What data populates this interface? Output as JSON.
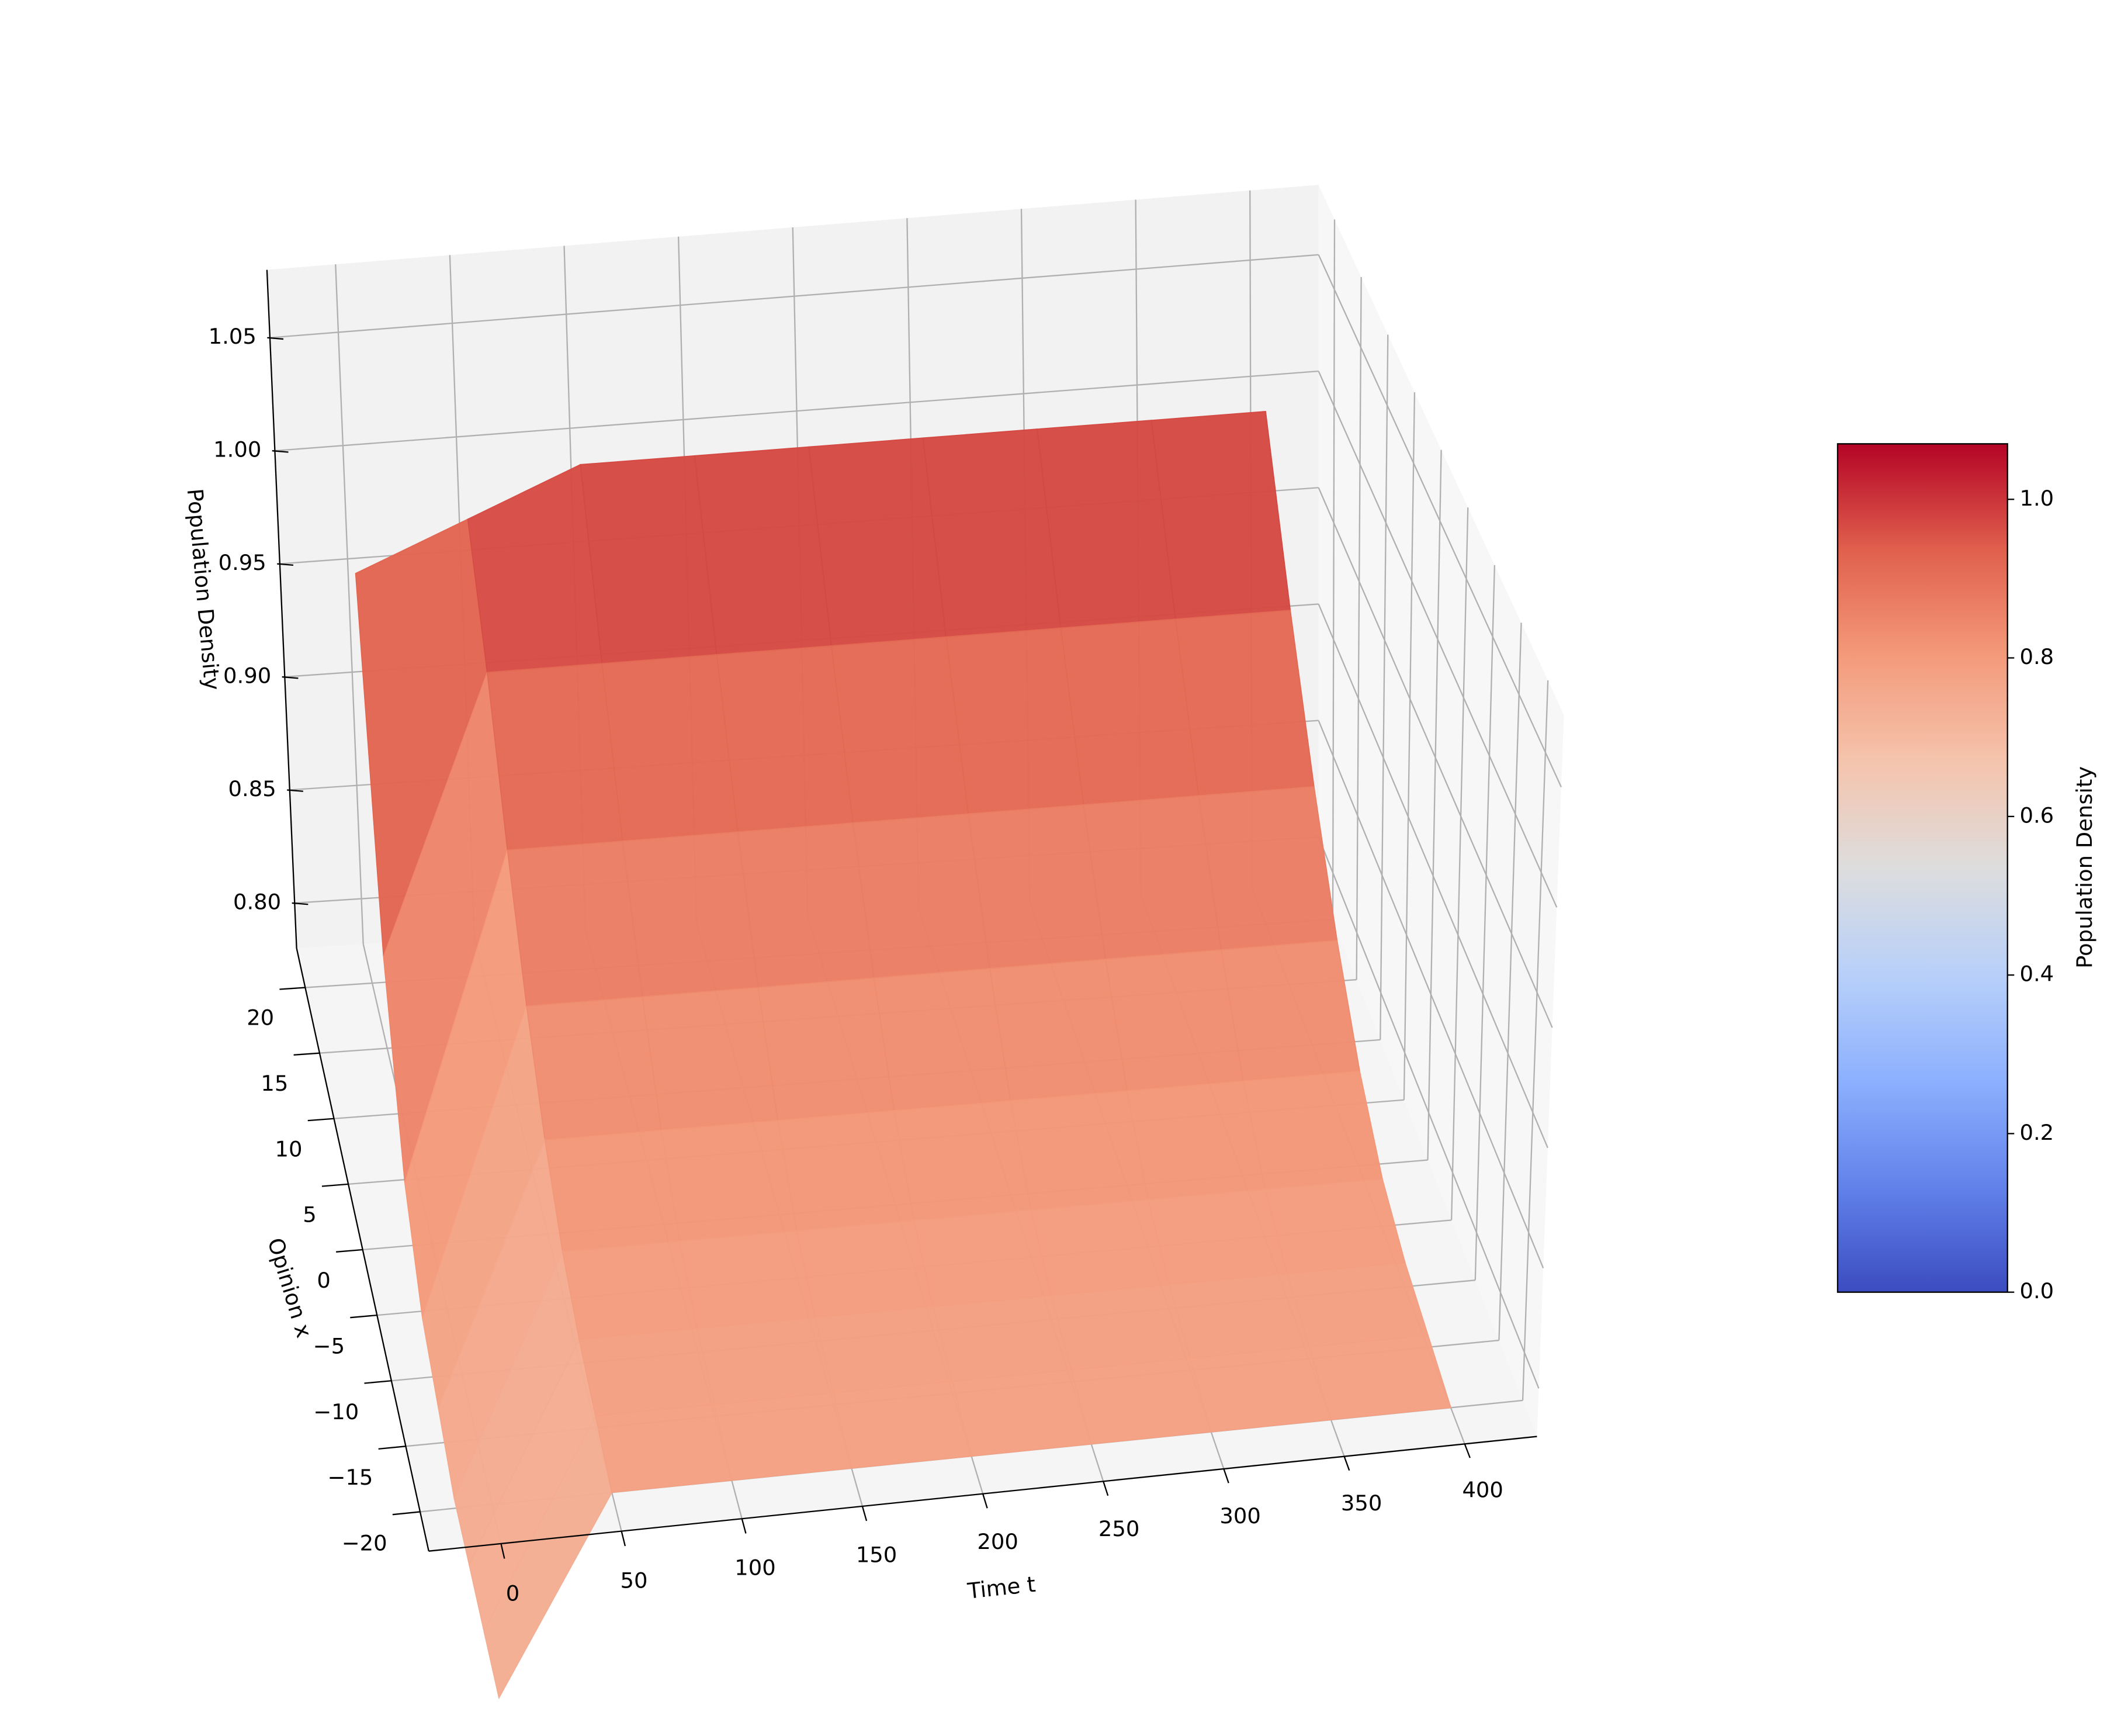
{
  "chart_data": {
    "type": "surface",
    "x_label": "Time t",
    "y_label": "Opinion x",
    "z_label": "Population Density",
    "colormap": "coolwarm",
    "grid": true,
    "x": [
      0,
      50,
      100,
      150,
      200,
      250,
      300,
      350,
      400
    ],
    "y": [
      -20,
      -15,
      -10,
      -5,
      0,
      5,
      10,
      15,
      20
    ],
    "z": [
      [
        0.7,
        0.78,
        0.78,
        0.78,
        0.78,
        0.78,
        0.78,
        0.78,
        0.78
      ],
      [
        0.7,
        0.785,
        0.785,
        0.785,
        0.785,
        0.785,
        0.785,
        0.785,
        0.785
      ],
      [
        0.7,
        0.79,
        0.79,
        0.79,
        0.79,
        0.79,
        0.79,
        0.79,
        0.79
      ],
      [
        0.7,
        0.8,
        0.8,
        0.8,
        0.8,
        0.8,
        0.8,
        0.8,
        0.8
      ],
      [
        0.71,
        0.82,
        0.82,
        0.82,
        0.82,
        0.82,
        0.82,
        0.82,
        0.82
      ],
      [
        0.72,
        0.85,
        0.85,
        0.85,
        0.85,
        0.85,
        0.85,
        0.85,
        0.85
      ],
      [
        0.75,
        0.89,
        0.89,
        0.89,
        0.89,
        0.89,
        0.89,
        0.89,
        0.89
      ],
      [
        0.82,
        0.94,
        0.94,
        0.94,
        0.94,
        0.94,
        0.94,
        0.94,
        0.94
      ],
      [
        0.96,
        0.98,
        1.0,
        1.0,
        1.0,
        1.0,
        1.0,
        1.0,
        1.0
      ]
    ],
    "xlim": [
      -30,
      430
    ],
    "ylim": [
      -23,
      23
    ],
    "zlim": [
      0.78,
      1.08
    ],
    "xticks": [
      0,
      50,
      100,
      150,
      200,
      250,
      300,
      350,
      400
    ],
    "yticks": [
      {
        "value": -20,
        "label": "−20"
      },
      {
        "value": -15,
        "label": "−15"
      },
      {
        "value": -10,
        "label": "−10"
      },
      {
        "value": -5,
        "label": "−5"
      },
      0,
      5,
      10,
      15,
      20
    ],
    "zticks": [
      {
        "value": 0.8,
        "label": "0.80"
      },
      0.85,
      {
        "value": 0.9,
        "label": "0.90"
      },
      0.95,
      {
        "value": 1.0,
        "label": "1.00"
      },
      1.05
    ],
    "colorbar": {
      "label": "Population Density",
      "clim": [
        0,
        1.07
      ],
      "ticks": [
        {
          "value": 0,
          "label": "0.0"
        },
        {
          "value": 0.2,
          "label": "0.2"
        },
        {
          "value": 0.4,
          "label": "0.4"
        },
        {
          "value": 0.6,
          "label": "0.6"
        },
        {
          "value": 0.8,
          "label": "0.8"
        },
        {
          "value": 1.0,
          "label": "1.0"
        }
      ]
    }
  }
}
